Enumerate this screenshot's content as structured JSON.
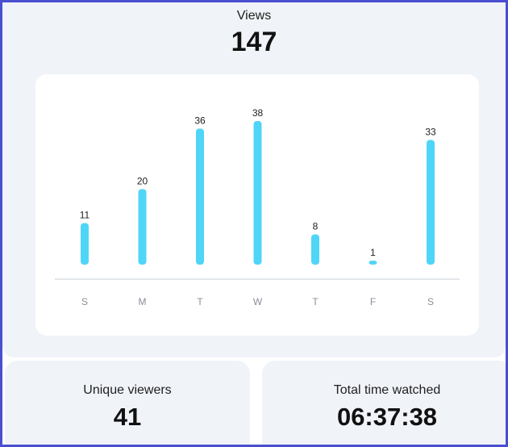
{
  "views": {
    "title": "Views",
    "count": "147"
  },
  "chart_data": {
    "type": "bar",
    "categories": [
      "S",
      "M",
      "T",
      "W",
      "T",
      "F",
      "S"
    ],
    "values": [
      11,
      20,
      36,
      38,
      8,
      1,
      33
    ],
    "ylim": [
      0,
      38
    ],
    "grid": false,
    "legend": "none"
  },
  "stats": {
    "unique_viewers_label": "Unique viewers",
    "unique_viewers_value": "41",
    "total_time_label": "Total time watched",
    "total_time_value": "06:37:38"
  },
  "colors": {
    "bar": "#4fd5f7",
    "axis_line": "#d9dde3",
    "frame": "#4a4fd0",
    "card_background": "#f0f3f8"
  }
}
